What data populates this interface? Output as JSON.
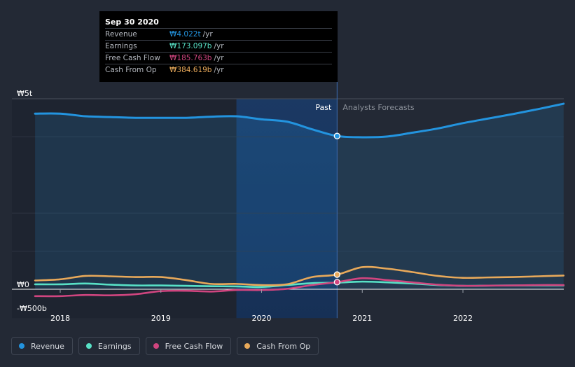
{
  "chart_data": {
    "type": "line",
    "currency_symbol": "₩",
    "y_ticks": [
      {
        "value": 5000,
        "label": "₩5t"
      },
      {
        "value": 0,
        "label": "₩0"
      },
      {
        "value": -500,
        "label": "-₩500b"
      }
    ],
    "ylim": [
      -500,
      5000
    ],
    "xlim": [
      2017.75,
      2023.0
    ],
    "x_ticks": [
      {
        "value": 2018,
        "label": "2018"
      },
      {
        "value": 2019,
        "label": "2019"
      },
      {
        "value": 2020,
        "label": "2020"
      },
      {
        "value": 2021,
        "label": "2021"
      },
      {
        "value": 2022,
        "label": "2022"
      }
    ],
    "past_label": "Past",
    "forecast_label": "Analysts Forecasts",
    "divider_x": 2020.75,
    "highlight_start_x": 2019.75,
    "series": [
      {
        "name": "Revenue",
        "color": "#2394df",
        "points": [
          [
            2017.75,
            4610
          ],
          [
            2018.0,
            4610
          ],
          [
            2018.25,
            4540
          ],
          [
            2018.5,
            4520
          ],
          [
            2018.75,
            4500
          ],
          [
            2019.0,
            4500
          ],
          [
            2019.25,
            4500
          ],
          [
            2019.5,
            4530
          ],
          [
            2019.75,
            4540
          ],
          [
            2020.0,
            4460
          ],
          [
            2020.25,
            4400
          ],
          [
            2020.5,
            4200
          ],
          [
            2020.75,
            4022
          ],
          [
            2021.0,
            3990
          ],
          [
            2021.25,
            4010
          ],
          [
            2021.5,
            4110
          ],
          [
            2021.75,
            4220
          ],
          [
            2022.0,
            4360
          ],
          [
            2022.25,
            4480
          ],
          [
            2022.5,
            4600
          ],
          [
            2022.75,
            4730
          ],
          [
            2023.0,
            4870
          ]
        ],
        "marker_value": 4022
      },
      {
        "name": "Earnings",
        "color": "#58e1c6",
        "points": [
          [
            2017.75,
            130
          ],
          [
            2018.0,
            130
          ],
          [
            2018.25,
            150
          ],
          [
            2018.5,
            120
          ],
          [
            2018.75,
            100
          ],
          [
            2019.0,
            100
          ],
          [
            2019.25,
            90
          ],
          [
            2019.5,
            80
          ],
          [
            2019.75,
            75
          ],
          [
            2020.0,
            60
          ],
          [
            2020.25,
            110
          ],
          [
            2020.5,
            160
          ],
          [
            2020.75,
            173
          ],
          [
            2021.0,
            200
          ],
          [
            2021.25,
            180
          ],
          [
            2021.5,
            150
          ],
          [
            2021.75,
            110
          ],
          [
            2022.0,
            90
          ],
          [
            2022.25,
            95
          ],
          [
            2022.5,
            100
          ],
          [
            2022.75,
            100
          ],
          [
            2023.0,
            100
          ]
        ],
        "marker_value": 173
      },
      {
        "name": "Free Cash Flow",
        "color": "#d0457f",
        "points": [
          [
            2017.75,
            -180
          ],
          [
            2018.0,
            -180
          ],
          [
            2018.25,
            -150
          ],
          [
            2018.5,
            -160
          ],
          [
            2018.75,
            -130
          ],
          [
            2019.0,
            -50
          ],
          [
            2019.25,
            -40
          ],
          [
            2019.5,
            -60
          ],
          [
            2019.75,
            -20
          ],
          [
            2020.0,
            -20
          ],
          [
            2020.25,
            10
          ],
          [
            2020.5,
            110
          ],
          [
            2020.75,
            186
          ],
          [
            2021.0,
            290
          ],
          [
            2021.25,
            240
          ],
          [
            2021.5,
            180
          ],
          [
            2021.75,
            120
          ],
          [
            2022.0,
            90
          ],
          [
            2022.25,
            95
          ],
          [
            2022.5,
            100
          ],
          [
            2022.75,
            110
          ],
          [
            2023.0,
            110
          ]
        ],
        "marker_value": 186
      },
      {
        "name": "Cash From Op",
        "color": "#e8a95a",
        "points": [
          [
            2017.75,
            230
          ],
          [
            2018.0,
            260
          ],
          [
            2018.25,
            350
          ],
          [
            2018.5,
            340
          ],
          [
            2018.75,
            320
          ],
          [
            2019.0,
            320
          ],
          [
            2019.25,
            240
          ],
          [
            2019.5,
            140
          ],
          [
            2019.75,
            140
          ],
          [
            2020.0,
            110
          ],
          [
            2020.25,
            130
          ],
          [
            2020.5,
            320
          ],
          [
            2020.75,
            385
          ],
          [
            2021.0,
            580
          ],
          [
            2021.25,
            540
          ],
          [
            2021.5,
            450
          ],
          [
            2021.75,
            350
          ],
          [
            2022.0,
            300
          ],
          [
            2022.25,
            310
          ],
          [
            2022.5,
            320
          ],
          [
            2022.75,
            340
          ],
          [
            2023.0,
            360
          ]
        ],
        "marker_value": 385
      }
    ]
  },
  "tooltip": {
    "date": "Sep 30 2020",
    "rows": [
      {
        "label": "Revenue",
        "value": "₩4.022t",
        "unit": "/yr",
        "color": "#2394df"
      },
      {
        "label": "Earnings",
        "value": "₩173.097b",
        "unit": "/yr",
        "color": "#58e1c6"
      },
      {
        "label": "Free Cash Flow",
        "value": "₩185.763b",
        "unit": "/yr",
        "color": "#d0457f"
      },
      {
        "label": "Cash From Op",
        "value": "₩384.619b",
        "unit": "/yr",
        "color": "#e8a95a"
      }
    ]
  },
  "legend": [
    {
      "label": "Revenue",
      "color": "#2394df"
    },
    {
      "label": "Earnings",
      "color": "#58e1c6"
    },
    {
      "label": "Free Cash Flow",
      "color": "#d0457f"
    },
    {
      "label": "Cash From Op",
      "color": "#e8a95a"
    }
  ]
}
